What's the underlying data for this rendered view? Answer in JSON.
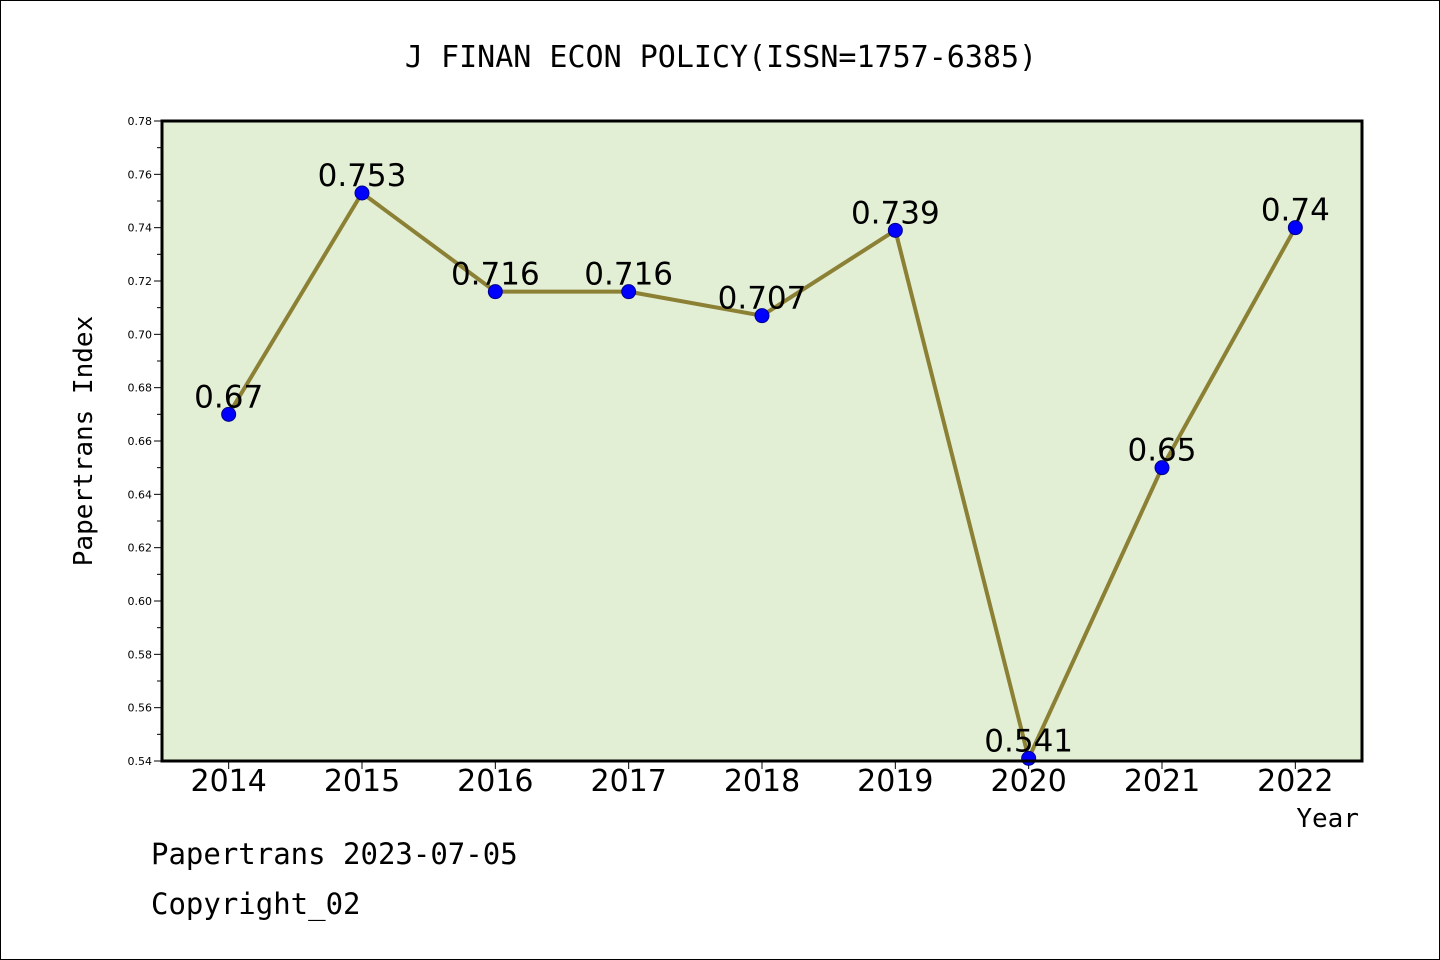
{
  "chart_data": {
    "type": "line",
    "title": "J FINAN ECON POLICY(ISSN=1757-6385)",
    "xlabel": "Year",
    "ylabel": "Papertrans Index",
    "categories": [
      "2014",
      "2015",
      "2016",
      "2017",
      "2018",
      "2019",
      "2020",
      "2021",
      "2022"
    ],
    "values": [
      0.67,
      0.753,
      0.716,
      0.716,
      0.707,
      0.739,
      0.541,
      0.65,
      0.74
    ],
    "data_labels": [
      "0.67",
      "0.753",
      "0.716",
      "0.716",
      "0.707",
      "0.739",
      "0.541",
      "0.65",
      "0.74"
    ],
    "ylim": [
      0.54,
      0.78
    ],
    "yticks": [
      "0.54",
      "0.56",
      "0.58",
      "0.60",
      "0.62",
      "0.64",
      "0.66",
      "0.68",
      "0.70",
      "0.72",
      "0.74",
      "0.76",
      "0.78"
    ],
    "grid": false,
    "colors": {
      "plot_background": "#e2efd5",
      "line": "#8b8034",
      "marker": "#0000ff"
    }
  },
  "footer": {
    "line1": "Papertrans 2023-07-05",
    "line2": "Copyright_02"
  }
}
